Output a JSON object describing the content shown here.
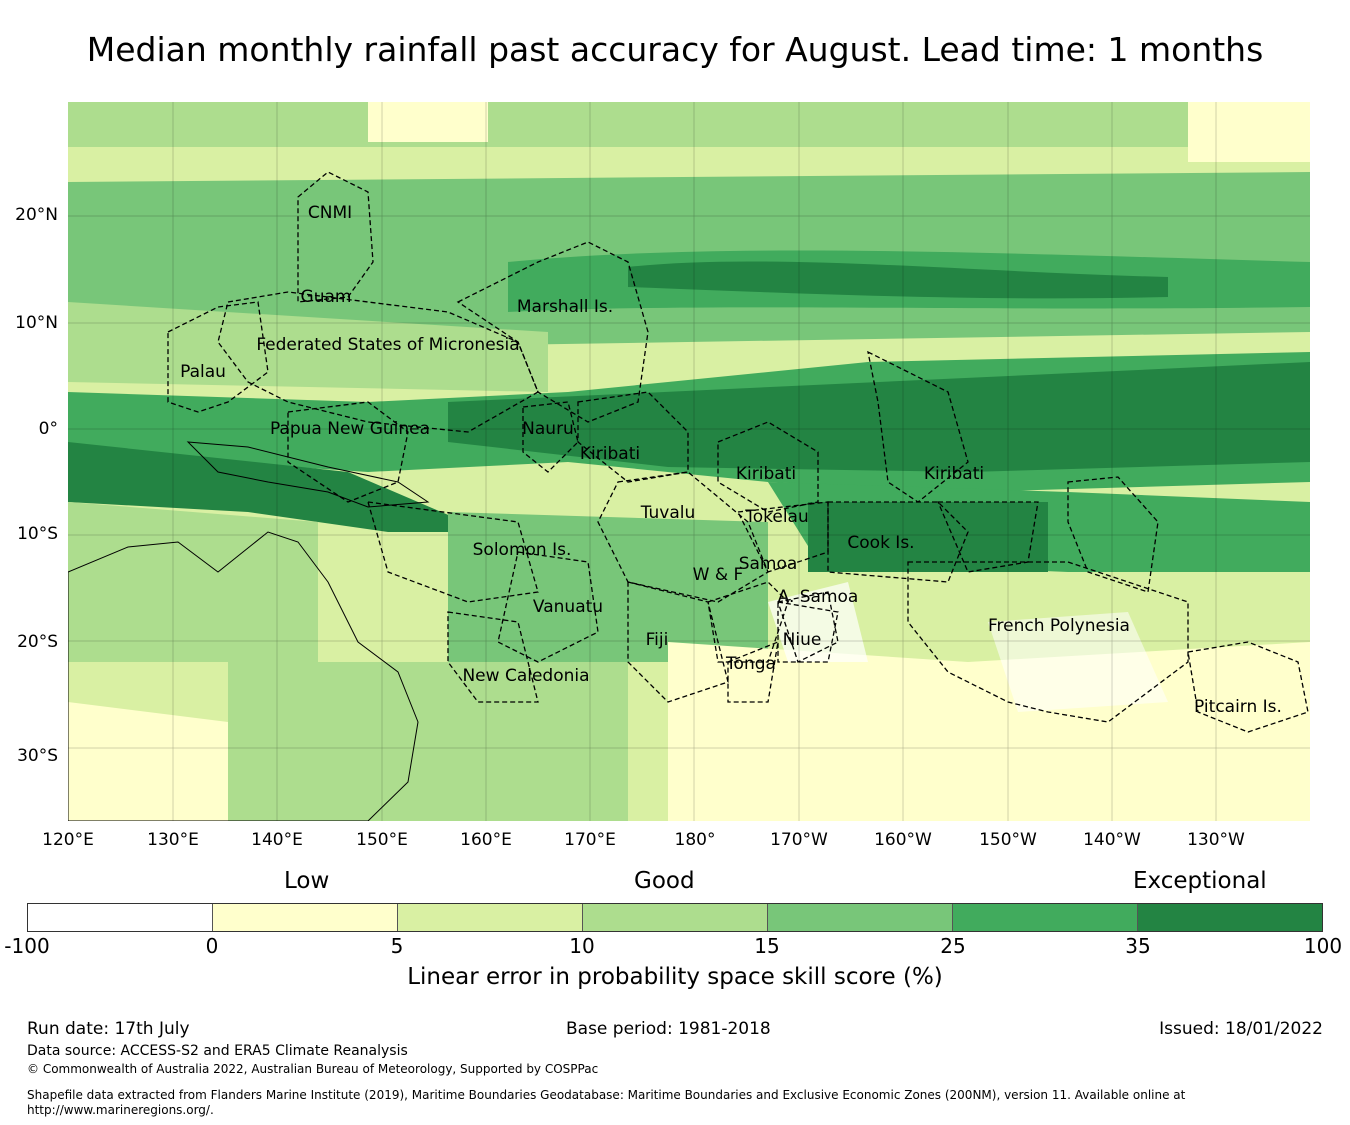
{
  "title": "Median monthly rainfall past accuracy for August. Lead time: 1 months",
  "map": {
    "lat_labels": [
      "20°N",
      "10°N",
      "0°",
      "10°S",
      "20°S",
      "30°S"
    ],
    "lon_labels": [
      "120°E",
      "130°E",
      "140°E",
      "150°E",
      "160°E",
      "170°E",
      "180°",
      "170°W",
      "160°W",
      "150°W",
      "140°W",
      "130°W"
    ],
    "regions": [
      "CNMI",
      "Guam",
      "Marshall Is.",
      "Federated States of Micronesia",
      "Palau",
      "Papua New Guinea",
      "Nauru",
      "Kiribati",
      "Kiribati",
      "Kiribati",
      "Tuvalu",
      "Tokelau",
      "Cook Is.",
      "Solomon Is.",
      "Samoa",
      "W & F",
      "A. Samoa",
      "Vanuatu",
      "Fiji",
      "Niue",
      "Tonga",
      "New Caledonia",
      "French Polynesia",
      "Pitcairn Is."
    ]
  },
  "legend": {
    "categories": [
      "Low",
      "Good",
      "Exceptional"
    ],
    "ticks": [
      "-100",
      "0",
      "5",
      "10",
      "15",
      "25",
      "35",
      "100"
    ],
    "colors": [
      "#ffffff",
      "#ffffcc",
      "#d9f0a3",
      "#addd8e",
      "#78c679",
      "#41ab5d",
      "#238443"
    ],
    "label": "Linear error in probability space skill score (%)"
  },
  "footer": {
    "run_date": "Run date: 17th July",
    "base_period": "Base period: 1981-2018",
    "issued": "Issued: 18/01/2022",
    "data_source": "Data source: ACCESS-S2 and ERA5 Climate Reanalysis",
    "copyright": "© Commonwealth of Australia 2022, Australian Bureau of Meteorology, Supported by COSPPac",
    "shapefile_1": "Shapefile data extracted from Flanders Marine Institute (2019), Maritime Boundaries Geodatabase: Maritime Boundaries and Exclusive Economic Zones (200NM), version 11. Available online at",
    "shapefile_2": "http://www.marineregions.org/."
  }
}
